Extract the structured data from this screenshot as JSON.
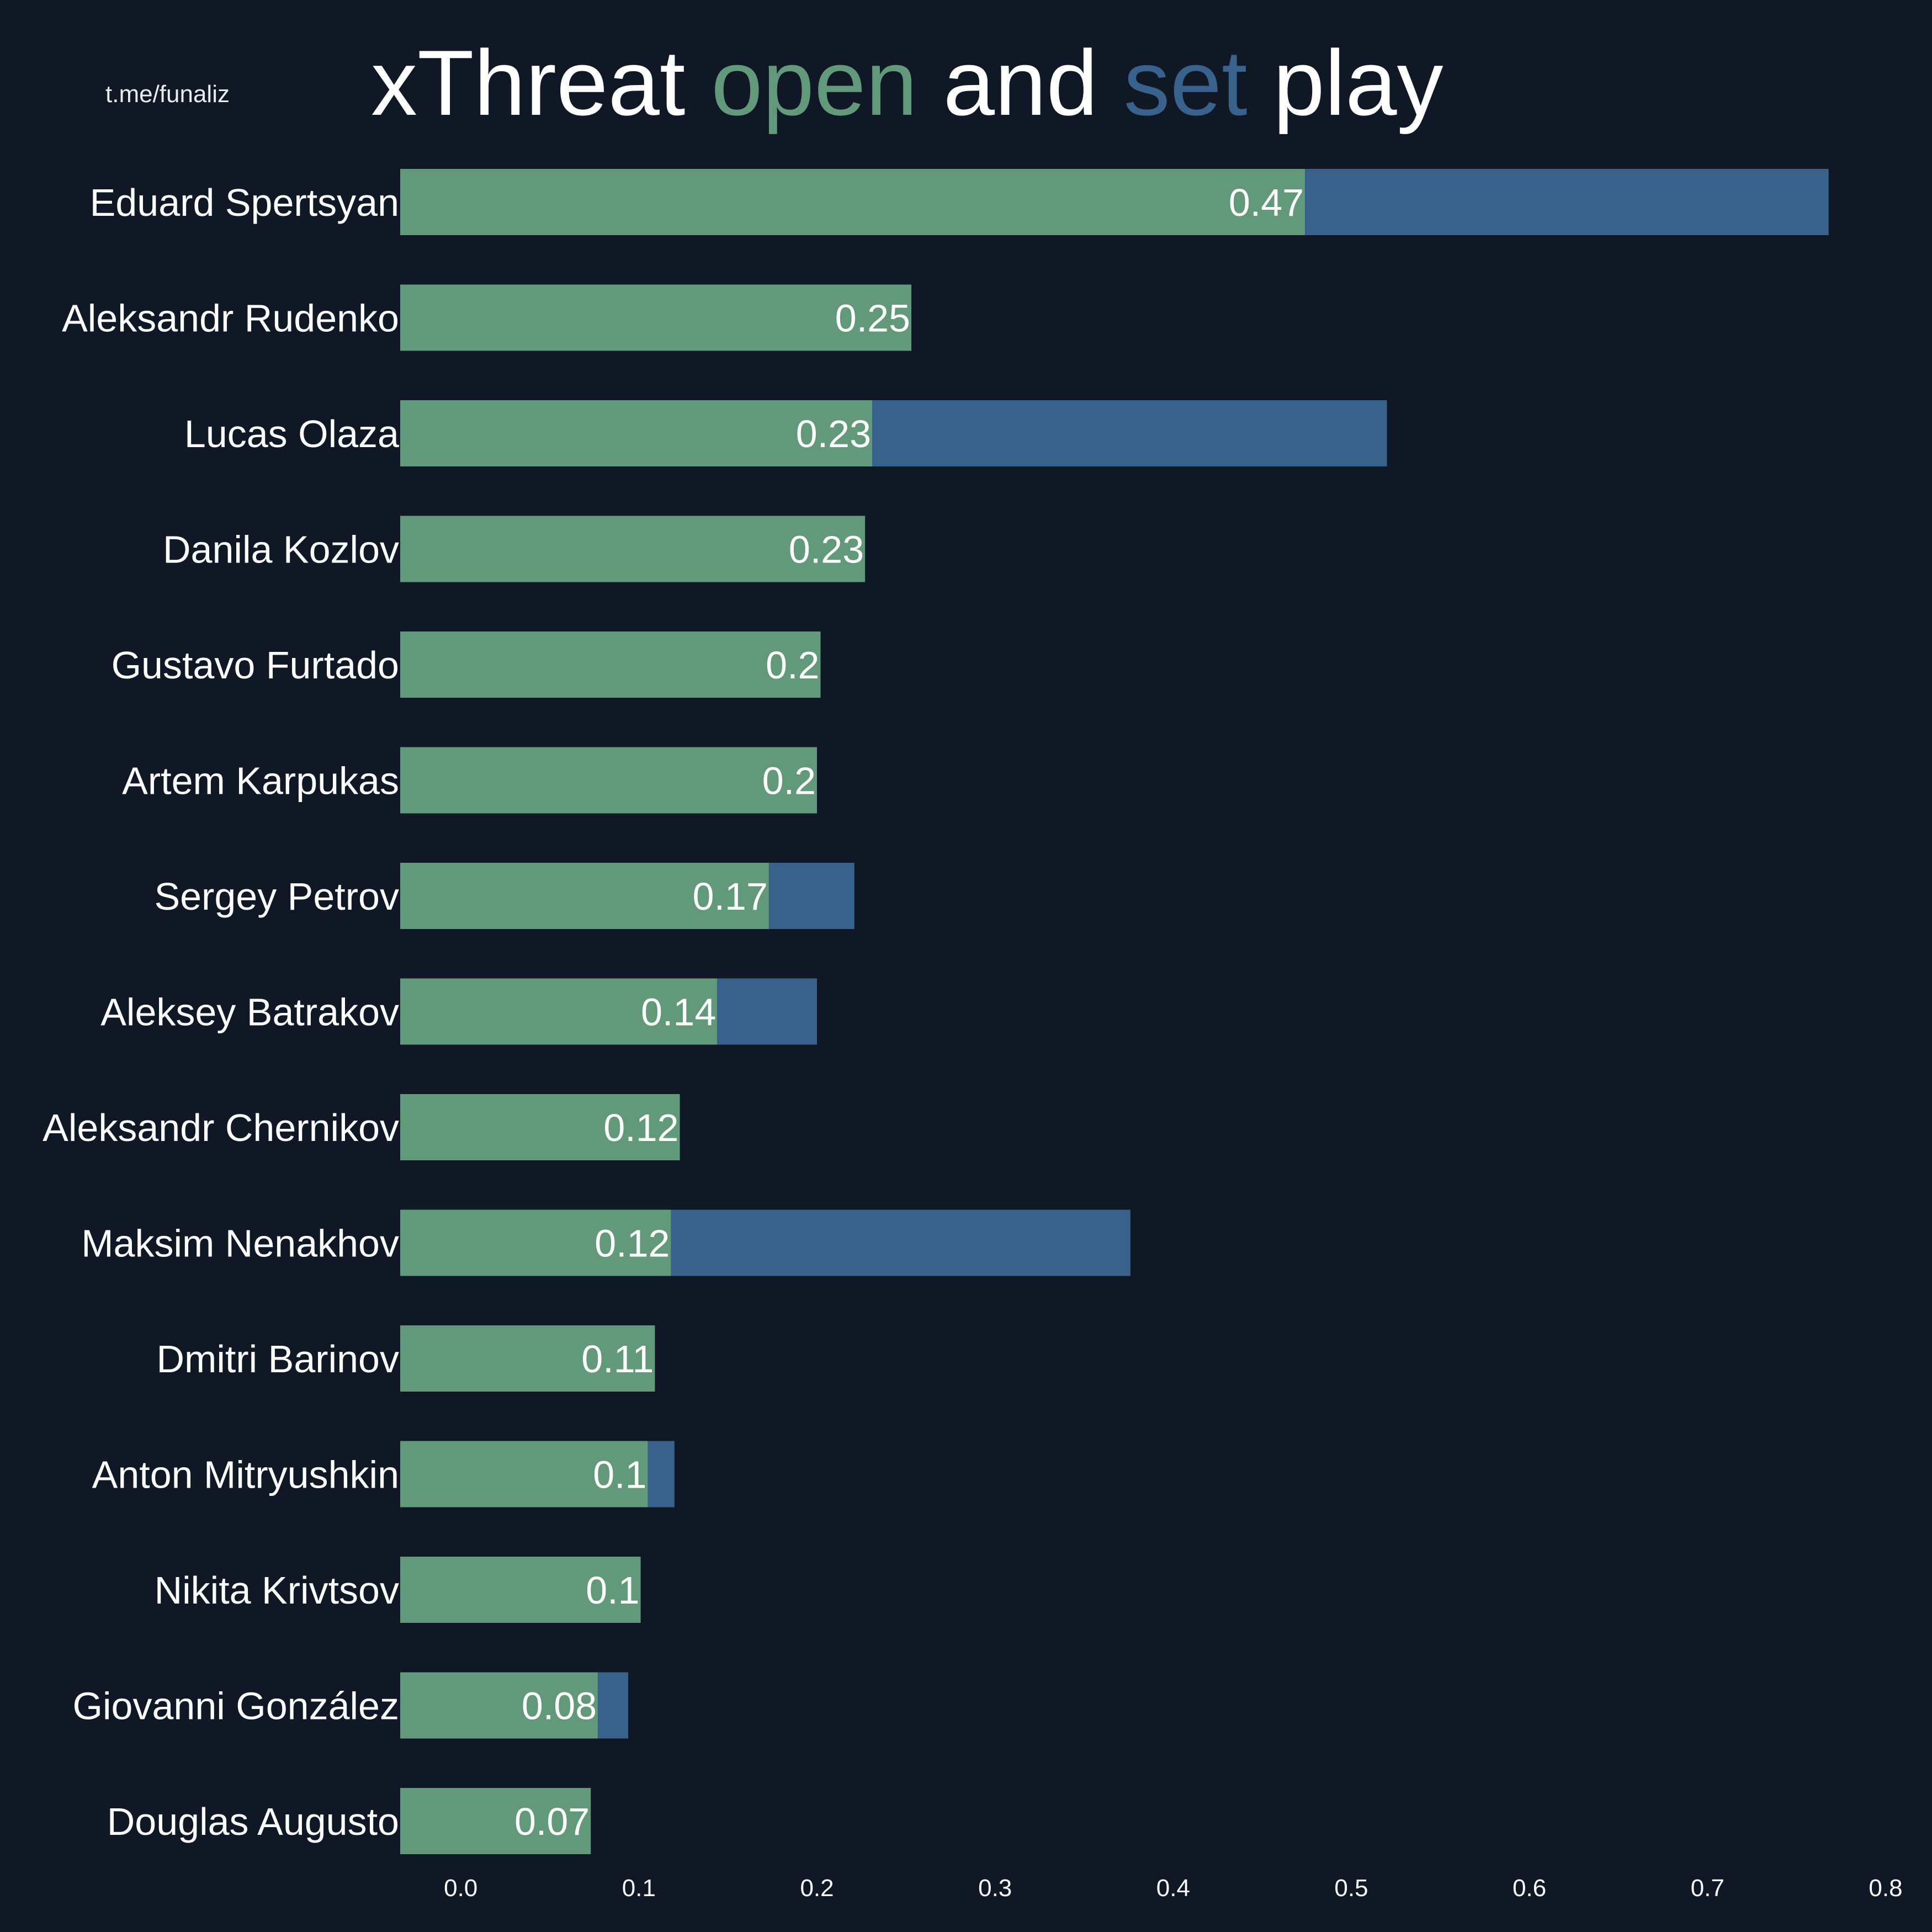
{
  "watermark": "t.me/funaliz",
  "title_parts": {
    "part1": "xThreat ",
    "open": "open",
    "part2": " and ",
    "set": "set",
    "part3": " play"
  },
  "colors": {
    "background": "#0f1824",
    "open": "#61997a",
    "set": "#38618c",
    "text": "#ffffff"
  },
  "chart_data": {
    "type": "bar",
    "orientation": "horizontal",
    "stacked": true,
    "categories": [
      "Eduard Spertsyan",
      "Aleksandr Rudenko",
      "Lucas Olaza",
      "Danila Kozlov",
      "Gustavo Furtado",
      "Artem Karpukas",
      "Sergey Petrov",
      "Aleksey Batrakov",
      "Aleksandr Chernikov",
      "Maksim Nenakhov",
      "Dmitri Barinov",
      "Anton Mitryushkin",
      "Nikita Krivtsov",
      "Giovanni González",
      "Douglas Augusto"
    ],
    "series": [
      {
        "key": "open",
        "values": [
          0.474,
          0.253,
          0.231,
          0.227,
          0.202,
          0.2,
          0.173,
          0.144,
          0.123,
          0.118,
          0.109,
          0.105,
          0.101,
          0.077,
          0.073
        ]
      },
      {
        "key": "set",
        "values": [
          0.294,
          0,
          0.289,
          0,
          0,
          0,
          0.048,
          0.056,
          0,
          0.258,
          0,
          0.015,
          0,
          0.017,
          0
        ]
      }
    ],
    "value_labels": [
      "0.47",
      "0.25",
      "0.23",
      "0.23",
      "0.2",
      "0.2",
      "0.17",
      "0.14",
      "0.12",
      "0.12",
      "0.11",
      "0.1",
      "0.1",
      "0.08",
      "0.07"
    ],
    "x_ticks": [
      0.0,
      0.1,
      0.2,
      0.3,
      0.4,
      0.5,
      0.6,
      0.7,
      0.8
    ],
    "x_tick_labels": [
      "0.0",
      "0.1",
      "0.2",
      "0.3",
      "0.4",
      "0.5",
      "0.6",
      "0.7",
      "0.8"
    ],
    "xlim": [
      -0.034,
      0.8
    ],
    "grid": false,
    "legend": "none (colors explained in title)"
  }
}
